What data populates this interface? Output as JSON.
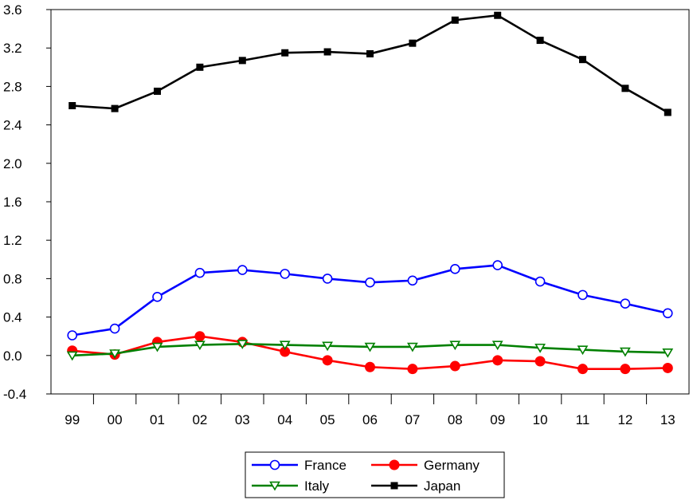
{
  "chart_data": {
    "type": "line",
    "categories": [
      "99",
      "00",
      "01",
      "02",
      "03",
      "04",
      "05",
      "06",
      "07",
      "08",
      "09",
      "10",
      "11",
      "12",
      "13"
    ],
    "yticks": [
      "-0.4",
      "0.0",
      "0.4",
      "0.8",
      "1.2",
      "1.6",
      "2.0",
      "2.4",
      "2.8",
      "3.2",
      "3.6"
    ],
    "ylim": [
      -0.4,
      3.6
    ],
    "grid": false,
    "legend_position": "bottom-center",
    "series": [
      {
        "name": "France",
        "color": "#0000ff",
        "marker": "circle-open",
        "values": [
          0.21,
          0.28,
          0.61,
          0.86,
          0.89,
          0.85,
          0.8,
          0.76,
          0.78,
          0.9,
          0.94,
          0.77,
          0.63,
          0.54,
          0.44
        ]
      },
      {
        "name": "Germany",
        "color": "#ff0000",
        "marker": "circle-filled",
        "values": [
          0.05,
          0.01,
          0.14,
          0.2,
          0.14,
          0.04,
          -0.05,
          -0.12,
          -0.14,
          -0.11,
          -0.05,
          -0.06,
          -0.14,
          -0.14,
          -0.13
        ]
      },
      {
        "name": "Italy",
        "color": "#008000",
        "marker": "triangle-down-open",
        "values": [
          0.0,
          0.02,
          0.09,
          0.11,
          0.12,
          0.11,
          0.1,
          0.09,
          0.09,
          0.11,
          0.11,
          0.08,
          0.06,
          0.04,
          0.03
        ]
      },
      {
        "name": "Japan",
        "color": "#000000",
        "marker": "square-filled",
        "values": [
          2.6,
          2.57,
          2.75,
          3.0,
          3.07,
          3.15,
          3.16,
          3.14,
          3.25,
          3.49,
          3.54,
          3.28,
          3.08,
          2.78,
          2.53
        ]
      }
    ]
  }
}
